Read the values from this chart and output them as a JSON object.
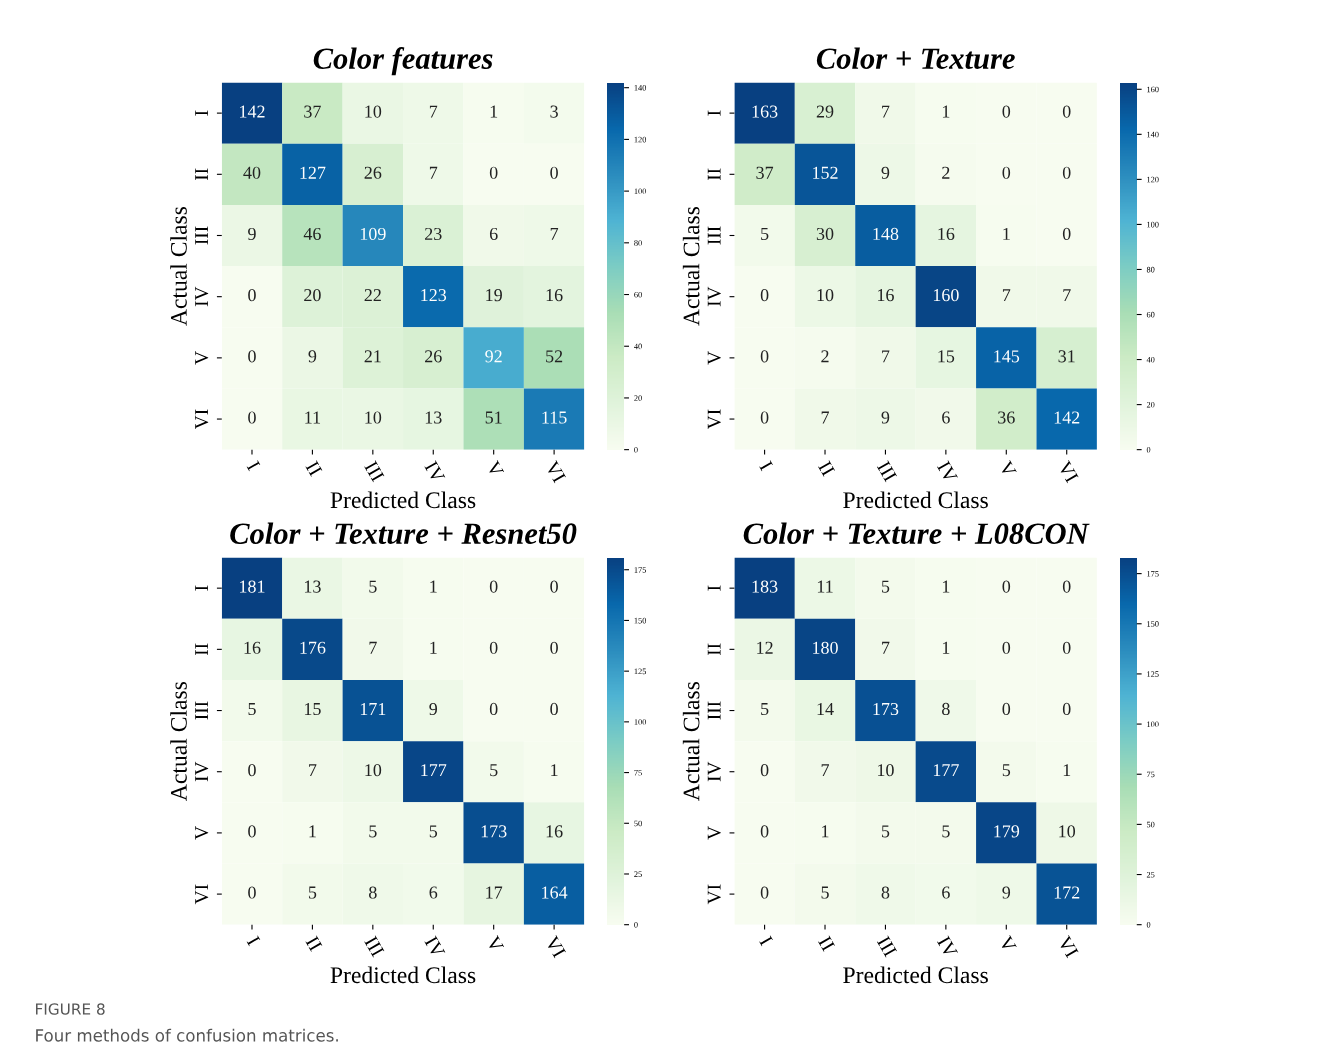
{
  "chart_data": [
    {
      "type": "heatmap",
      "title": "Color features",
      "xlabel": "Predicted Class",
      "ylabel": "Actual Class",
      "categories": [
        "I",
        "II",
        "III",
        "IV",
        "V",
        "VI"
      ],
      "y_categories": [
        "I",
        "II",
        "III",
        "IV",
        "V",
        "VI"
      ],
      "cells": [
        [
          142,
          37,
          10,
          7,
          1,
          3
        ],
        [
          40,
          127,
          26,
          7,
          0,
          0
        ],
        [
          9,
          46,
          109,
          23,
          6,
          7
        ],
        [
          0,
          20,
          22,
          123,
          19,
          16
        ],
        [
          0,
          9,
          21,
          26,
          92,
          52
        ],
        [
          0,
          11,
          10,
          13,
          51,
          115
        ]
      ],
      "data_labels": true,
      "clim": [
        0,
        142
      ],
      "cticks": [
        0,
        20,
        40,
        60,
        80,
        100,
        120,
        140
      ],
      "annotations": [
        "FIGURE 8",
        "Four methods of confusion matrices."
      ]
    },
    {
      "type": "heatmap",
      "title": "Color + Texture",
      "xlabel": "Predicted Class",
      "ylabel": "Actual Class",
      "categories": [
        "I",
        "II",
        "III",
        "IV",
        "V",
        "VI"
      ],
      "y_categories": [
        "I",
        "II",
        "III",
        "IV",
        "V",
        "VI"
      ],
      "cells": [
        [
          163,
          29,
          7,
          1,
          0,
          0
        ],
        [
          37,
          152,
          9,
          2,
          0,
          0
        ],
        [
          5,
          30,
          148,
          16,
          1,
          0
        ],
        [
          0,
          10,
          16,
          160,
          7,
          7
        ],
        [
          0,
          2,
          7,
          15,
          145,
          31
        ],
        [
          0,
          7,
          9,
          6,
          36,
          142
        ]
      ],
      "data_labels": true,
      "clim": [
        0,
        163
      ],
      "cticks": [
        0,
        20,
        40,
        60,
        80,
        100,
        120,
        140,
        160
      ]
    },
    {
      "type": "heatmap",
      "title": "Color + Texture + Resnet50",
      "xlabel": "Predicted Class",
      "ylabel": "Actual Class",
      "categories": [
        "I",
        "II",
        "III",
        "IV",
        "V",
        "VI"
      ],
      "y_categories": [
        "I",
        "II",
        "III",
        "IV",
        "V",
        "VI"
      ],
      "cells": [
        [
          181,
          13,
          5,
          1,
          0,
          0
        ],
        [
          16,
          176,
          7,
          1,
          0,
          0
        ],
        [
          5,
          15,
          171,
          9,
          0,
          0
        ],
        [
          0,
          7,
          10,
          177,
          5,
          1
        ],
        [
          0,
          1,
          5,
          5,
          173,
          16
        ],
        [
          0,
          5,
          8,
          6,
          17,
          164
        ]
      ],
      "data_labels": true,
      "clim": [
        0,
        181
      ],
      "cticks": [
        0,
        25,
        50,
        75,
        100,
        125,
        150,
        175
      ]
    },
    {
      "type": "heatmap",
      "title": "Color + Texture + L08CON",
      "xlabel": "Predicted Class",
      "ylabel": "Actual Class",
      "categories": [
        "I",
        "II",
        "III",
        "IV",
        "V",
        "VI"
      ],
      "y_categories": [
        "I",
        "II",
        "III",
        "IV",
        "V",
        "VI"
      ],
      "cells": [
        [
          183,
          11,
          5,
          1,
          0,
          0
        ],
        [
          12,
          180,
          7,
          1,
          0,
          0
        ],
        [
          5,
          14,
          173,
          8,
          0,
          0
        ],
        [
          0,
          7,
          10,
          177,
          5,
          1
        ],
        [
          0,
          1,
          5,
          5,
          179,
          10
        ],
        [
          0,
          5,
          8,
          6,
          9,
          172
        ]
      ],
      "data_labels": true,
      "clim": [
        0,
        183
      ],
      "cticks": [
        0,
        25,
        50,
        75,
        100,
        125,
        150,
        175
      ]
    }
  ]
}
